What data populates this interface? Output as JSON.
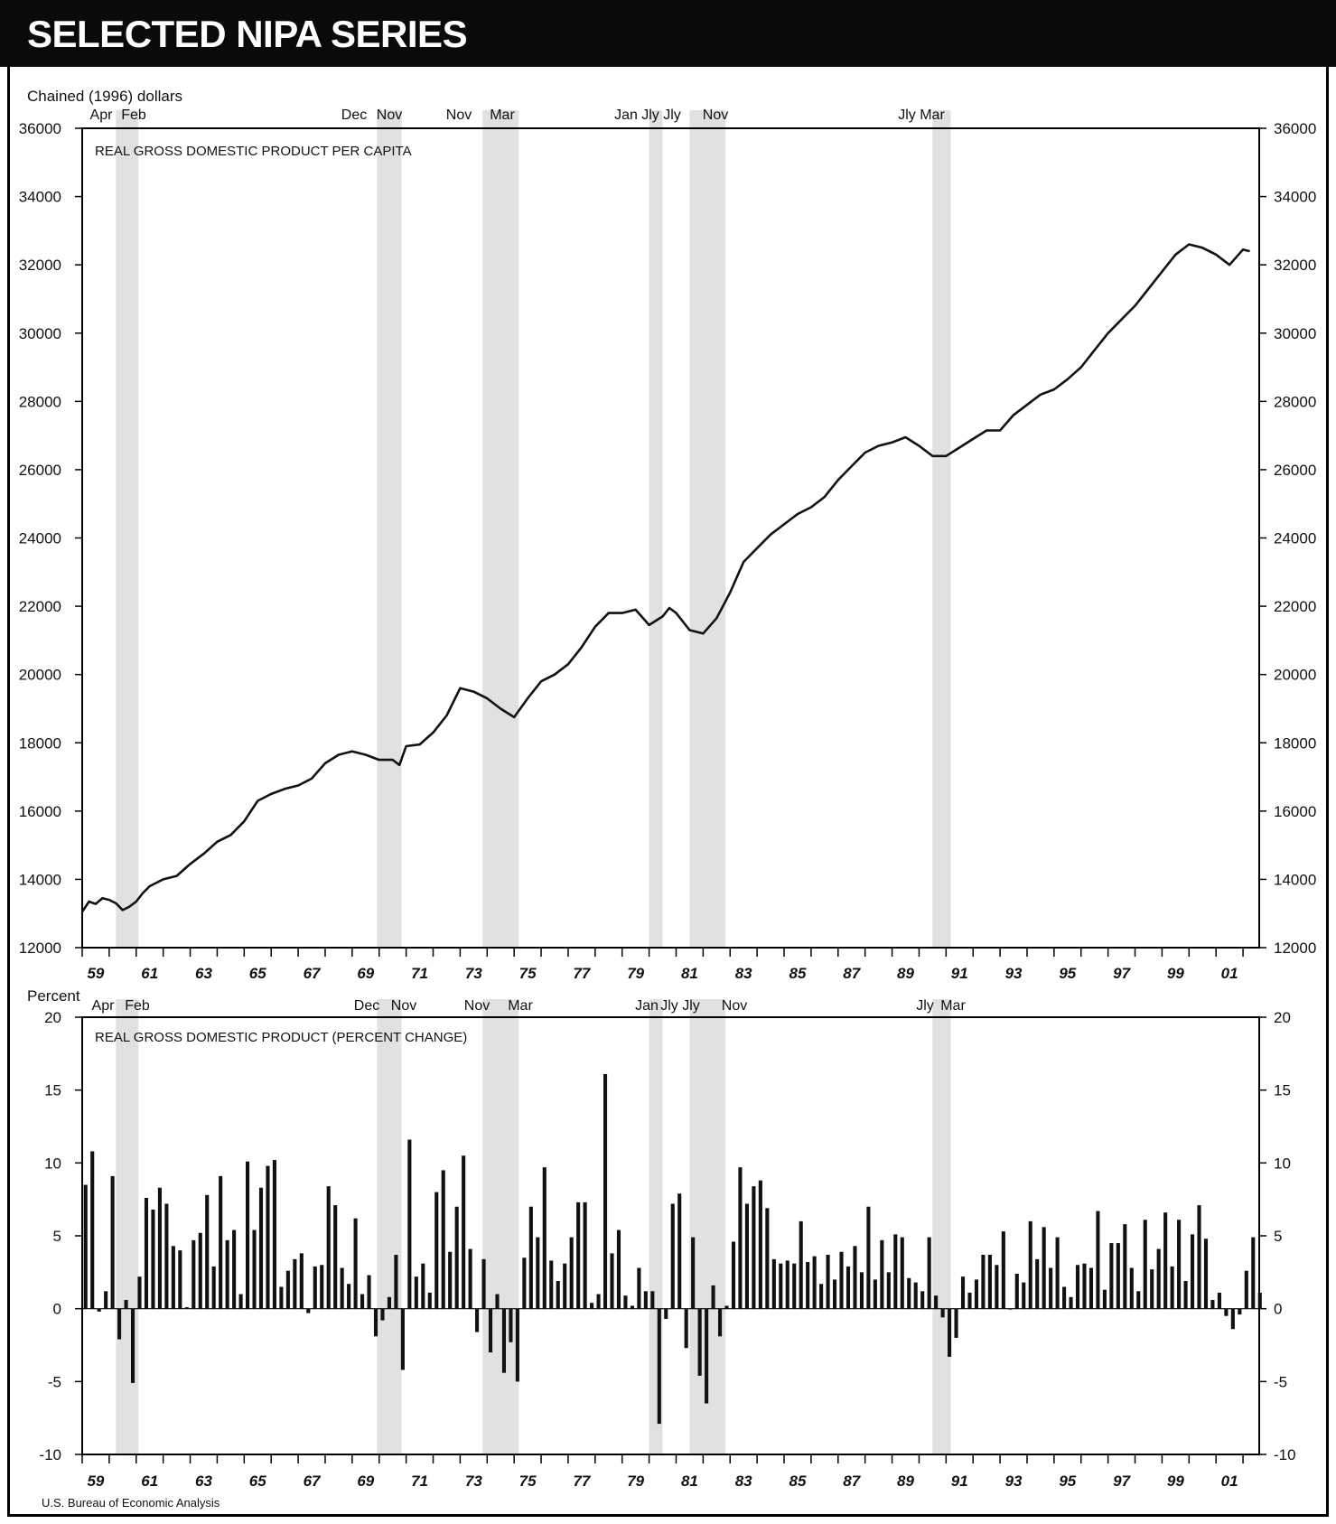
{
  "header": {
    "title": "SELECTED NIPA SERIES"
  },
  "source": "U.S. Bureau of Economic Analysis",
  "recession_labels": {
    "top": [
      "Apr",
      "Feb",
      "Dec",
      "Nov",
      "Nov",
      "Mar",
      "Jan",
      "Jly",
      "Jly",
      "Nov",
      "Jly",
      "Mar"
    ],
    "bottom": [
      "Apr",
      "Feb",
      "Dec",
      "Nov",
      "Nov",
      "Mar",
      "Jan",
      "Jly",
      "Jly",
      "Nov",
      "Jly",
      "Mar"
    ]
  },
  "recessions": [
    [
      1960.25,
      1961.08
    ],
    [
      1969.92,
      1970.83
    ],
    [
      1973.83,
      1975.17
    ],
    [
      1980.0,
      1980.5
    ],
    [
      1981.5,
      1982.83
    ],
    [
      1990.5,
      1991.17
    ]
  ],
  "year_labels": [
    "59",
    "61",
    "63",
    "65",
    "67",
    "69",
    "71",
    "73",
    "75",
    "77",
    "79",
    "81",
    "83",
    "85",
    "87",
    "89",
    "91",
    "93",
    "95",
    "97",
    "99",
    "01"
  ],
  "chart_data": [
    {
      "type": "line",
      "title": "REAL GROSS DOMESTIC PRODUCT PER CAPITA",
      "ylabel": "Chained (1996) dollars",
      "ylim": [
        12000,
        36000
      ],
      "xlim": [
        1959,
        2002.6
      ],
      "yticks": [
        "12000",
        "14000",
        "16000",
        "18000",
        "20000",
        "22000",
        "24000",
        "26000",
        "28000",
        "30000",
        "32000",
        "34000",
        "36000"
      ],
      "series": [
        {
          "x": [
            1959.0,
            1959.25,
            1959.5,
            1959.75,
            1960.0,
            1960.25,
            1960.5,
            1960.75,
            1961.0,
            1961.25,
            1961.5,
            1962.0,
            1962.5,
            1963.0,
            1963.5,
            1964.0,
            1964.5,
            1965.0,
            1965.5,
            1966.0,
            1966.5,
            1967.0,
            1967.5,
            1968.0,
            1968.5,
            1969.0,
            1969.5,
            1970.0,
            1970.5,
            1970.75,
            1971.0,
            1971.5,
            1972.0,
            1972.5,
            1973.0,
            1973.5,
            1974.0,
            1974.5,
            1975.0,
            1975.5,
            1976.0,
            1976.5,
            1977.0,
            1977.5,
            1978.0,
            1978.5,
            1979.0,
            1979.5,
            1980.0,
            1980.5,
            1980.75,
            1981.0,
            1981.5,
            1982.0,
            1982.5,
            1983.0,
            1983.5,
            1984.0,
            1984.5,
            1985.0,
            1985.5,
            1986.0,
            1986.5,
            1987.0,
            1987.5,
            1988.0,
            1988.5,
            1989.0,
            1989.5,
            1990.0,
            1990.5,
            1991.0,
            1991.5,
            1992.0,
            1992.5,
            1993.0,
            1993.5,
            1994.0,
            1994.5,
            1995.0,
            1995.5,
            1996.0,
            1996.5,
            1997.0,
            1997.5,
            1998.0,
            1998.5,
            1999.0,
            1999.5,
            2000.0,
            2000.5,
            2001.0,
            2001.5,
            2002.0,
            2002.25
          ],
          "values": [
            13050,
            13350,
            13280,
            13450,
            13400,
            13300,
            13100,
            13200,
            13350,
            13600,
            13800,
            14000,
            14100,
            14450,
            14750,
            15100,
            15300,
            15700,
            16300,
            16500,
            16650,
            16750,
            16950,
            17400,
            17650,
            17750,
            17650,
            17500,
            17500,
            17350,
            17900,
            17950,
            18300,
            18800,
            19600,
            19500,
            19300,
            19000,
            18750,
            19300,
            19800,
            20000,
            20300,
            20800,
            21400,
            21800,
            21800,
            21900,
            21450,
            21700,
            21950,
            21800,
            21300,
            21200,
            21650,
            22400,
            23300,
            23700,
            24100,
            24400,
            24700,
            24900,
            25200,
            25700,
            26100,
            26500,
            26700,
            26800,
            26950,
            26700,
            26400,
            26400,
            26650,
            26900,
            27150,
            27150,
            27600,
            27900,
            28200,
            28350,
            28650,
            29000,
            29500,
            30000,
            30400,
            30800,
            31300,
            31800,
            32300,
            32600,
            32500,
            32300,
            32000,
            32450,
            32400
          ]
        }
      ]
    },
    {
      "type": "bar",
      "title": "REAL GROSS DOMESTIC PRODUCT (PERCENT CHANGE)",
      "ylabel": "Percent",
      "ylim": [
        -10,
        20
      ],
      "xlim": [
        1959,
        2002.6
      ],
      "yticks": [
        "-10",
        "-5",
        "0",
        "5",
        "10",
        "15",
        "20"
      ],
      "series": [
        {
          "x_start": 1959.0,
          "x_step": 0.25,
          "values": [
            8.5,
            10.8,
            -0.2,
            1.2,
            9.1,
            -2.1,
            0.6,
            -5.1,
            2.2,
            7.6,
            6.8,
            8.3,
            7.2,
            4.3,
            4.0,
            0.1,
            4.7,
            5.2,
            7.8,
            2.9,
            9.1,
            4.7,
            5.4,
            1.0,
            10.1,
            5.4,
            8.3,
            9.8,
            10.2,
            1.5,
            2.6,
            3.4,
            3.8,
            -0.3,
            2.9,
            3.0,
            8.4,
            7.1,
            2.8,
            1.7,
            6.2,
            1.0,
            2.3,
            -1.9,
            -0.8,
            0.8,
            3.7,
            -4.2,
            11.6,
            2.2,
            3.1,
            1.1,
            8.0,
            9.5,
            3.9,
            7.0,
            10.5,
            4.1,
            -1.6,
            3.4,
            -3.0,
            1.0,
            -4.4,
            -2.3,
            -5.0,
            3.5,
            7.0,
            4.9,
            9.7,
            3.3,
            1.9,
            3.1,
            4.9,
            7.3,
            7.3,
            0.4,
            1.0,
            16.1,
            3.8,
            5.4,
            0.9,
            0.2,
            2.8,
            1.2,
            1.2,
            -7.9,
            -0.7,
            7.2,
            7.9,
            -2.7,
            4.9,
            -4.6,
            -6.5,
            1.6,
            -1.9,
            0.2,
            4.6,
            9.7,
            7.2,
            8.4,
            8.8,
            6.9,
            3.4,
            3.1,
            3.3,
            3.1,
            6.0,
            3.2,
            3.6,
            1.7,
            3.7,
            2.0,
            3.9,
            2.9,
            4.3,
            2.5,
            7.0,
            2.0,
            4.7,
            2.5,
            5.1,
            4.9,
            2.1,
            1.8,
            1.2,
            4.9,
            0.9,
            -0.6,
            -3.3,
            -2.0,
            2.2,
            1.1,
            2.0,
            3.7,
            3.7,
            3.0,
            5.3,
            0.0,
            2.4,
            1.8,
            6.0,
            3.4,
            5.6,
            2.8,
            4.9,
            1.5,
            0.8,
            3.0,
            3.1,
            2.8,
            6.7,
            1.3,
            4.5,
            4.5,
            5.8,
            2.8,
            1.2,
            6.1,
            2.7,
            4.1,
            6.6,
            2.9,
            6.1,
            1.9,
            5.1,
            7.1,
            4.8,
            0.6,
            1.1,
            -0.5,
            -1.4,
            -0.4,
            2.6,
            4.9,
            1.1
          ]
        }
      ]
    }
  ]
}
